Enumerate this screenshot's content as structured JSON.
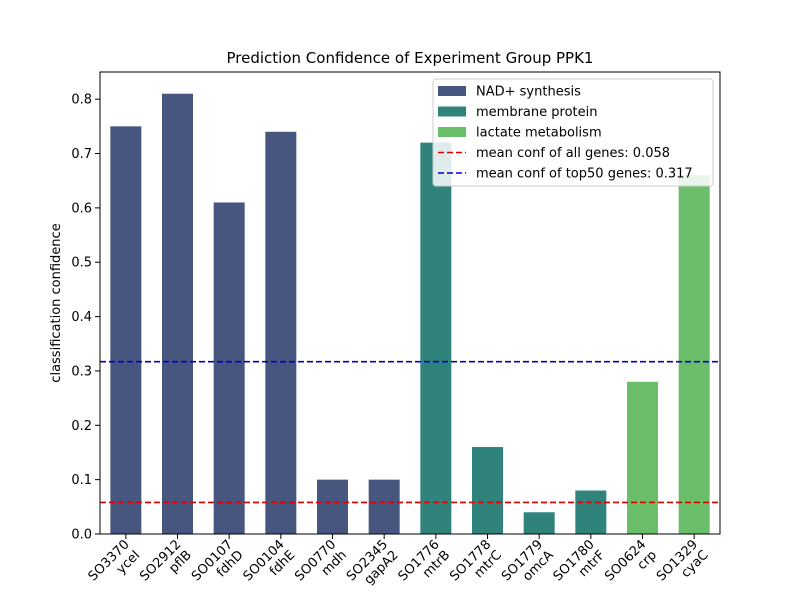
{
  "chart_data": {
    "type": "bar",
    "title": "Prediction Confidence of Experiment Group PPK1",
    "xlabel": "",
    "ylabel": "classification confidence",
    "ylim": [
      0,
      0.85
    ],
    "yticks": [
      0.0,
      0.1,
      0.2,
      0.3,
      0.4,
      0.5,
      0.6,
      0.7,
      0.8
    ],
    "ytick_labels": [
      "0.0",
      "0.1",
      "0.2",
      "0.3",
      "0.4",
      "0.5",
      "0.6",
      "0.7",
      "0.8"
    ],
    "grid": false,
    "legend_position": "top-right",
    "groups": [
      {
        "name": "NAD+ synthesis",
        "color": "#46567f"
      },
      {
        "name": "membrane protein",
        "color": "#2f837b"
      },
      {
        "name": "lactate metabolism",
        "color": "#6abd69"
      }
    ],
    "bars": [
      {
        "id": "SO3370",
        "gene": "yceI",
        "value": 0.75,
        "group": 0
      },
      {
        "id": "SO2912",
        "gene": "pflB",
        "value": 0.81,
        "group": 0
      },
      {
        "id": "SO0107",
        "gene": "fdhD",
        "value": 0.61,
        "group": 0
      },
      {
        "id": "SO0104",
        "gene": "fdhE",
        "value": 0.74,
        "group": 0
      },
      {
        "id": "SO0770",
        "gene": "mdh",
        "value": 0.1,
        "group": 0
      },
      {
        "id": "SO2345",
        "gene": "gapA2",
        "value": 0.1,
        "group": 0
      },
      {
        "id": "SO1776",
        "gene": "mtrB",
        "value": 0.72,
        "group": 1
      },
      {
        "id": "SO1778",
        "gene": "mtrC",
        "value": 0.16,
        "group": 1
      },
      {
        "id": "SO1779",
        "gene": "omcA",
        "value": 0.04,
        "group": 1
      },
      {
        "id": "SO1780",
        "gene": "mtrF",
        "value": 0.08,
        "group": 1
      },
      {
        "id": "SO0624",
        "gene": "crp",
        "value": 0.28,
        "group": 2
      },
      {
        "id": "SO1329",
        "gene": "cyaC",
        "value": 0.66,
        "group": 2
      }
    ],
    "reference_lines": [
      {
        "label": "mean conf of all genes: 0.058",
        "value": 0.058,
        "color": "#dd0000"
      },
      {
        "label": "mean conf of top50 genes: 0.317",
        "value": 0.317,
        "color": "#0000cc"
      }
    ]
  }
}
